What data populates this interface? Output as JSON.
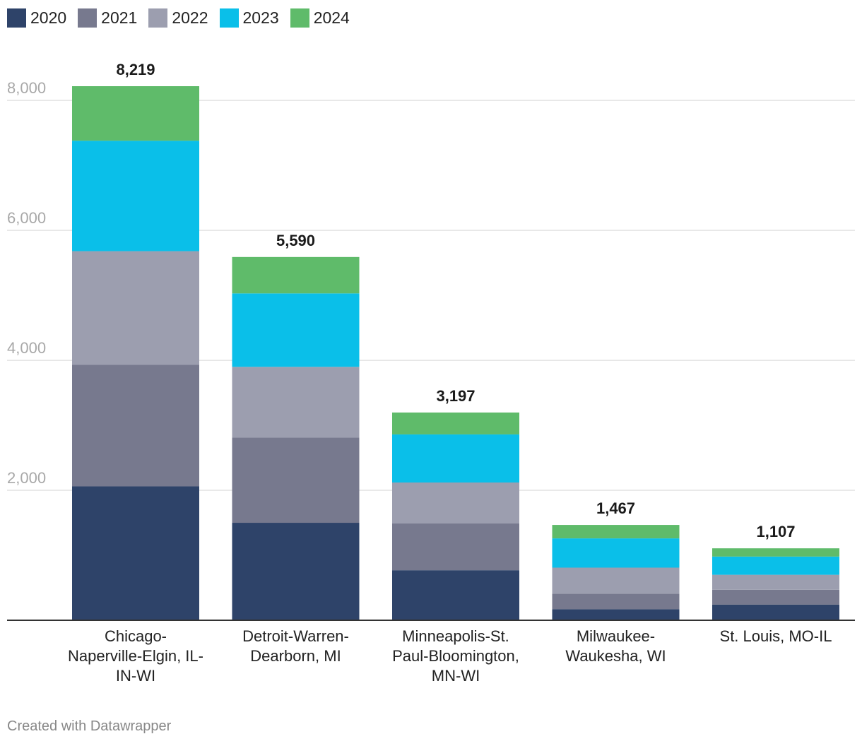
{
  "chart_data": {
    "type": "bar",
    "stacked": true,
    "categories": [
      "Chicago-Naperville-Elgin, IL-IN-WI",
      "Detroit-Warren-Dearborn, MI",
      "Minneapolis-St. Paul-Bloomington, MN-WI",
      "Milwaukee-Waukesha, WI",
      "St. Louis, MO-IL"
    ],
    "category_lines": [
      [
        "Chicago-",
        "Naperville-Elgin, IL-",
        "IN-WI"
      ],
      [
        "Detroit-Warren-",
        "Dearborn, MI"
      ],
      [
        "Minneapolis-St.",
        "Paul-Bloomington,",
        "MN-WI"
      ],
      [
        "Milwaukee-",
        "Waukesha, WI"
      ],
      [
        "St. Louis, MO-IL"
      ]
    ],
    "series": [
      {
        "name": "2020",
        "color": "#2e4369",
        "values": [
          2060,
          1500,
          770,
          170,
          240
        ]
      },
      {
        "name": "2021",
        "color": "#77798e",
        "values": [
          1870,
          1310,
          720,
          240,
          230
        ]
      },
      {
        "name": "2022",
        "color": "#9c9eaf",
        "values": [
          1750,
          1090,
          630,
          400,
          230
        ]
      },
      {
        "name": "2023",
        "color": "#0abfe9",
        "values": [
          1700,
          1130,
          740,
          450,
          280
        ]
      },
      {
        "name": "2024",
        "color": "#5fbb6a",
        "values": [
          839,
          560,
          337,
          207,
          127
        ]
      }
    ],
    "totals": [
      8219,
      5590,
      3197,
      1467,
      1107
    ],
    "total_labels": [
      "8,219",
      "5,590",
      "3,197",
      "1,467",
      "1,107"
    ],
    "y_ticks": [
      2000,
      4000,
      6000,
      8000
    ],
    "y_tick_labels": [
      "2,000",
      "4,000",
      "6,000",
      "8,000"
    ],
    "ylim": [
      0,
      8219
    ],
    "title": "",
    "xlabel": "",
    "ylabel": "",
    "grid": true,
    "legend_position": "top-left"
  },
  "footer": {
    "credit": "Created with Datawrapper"
  }
}
